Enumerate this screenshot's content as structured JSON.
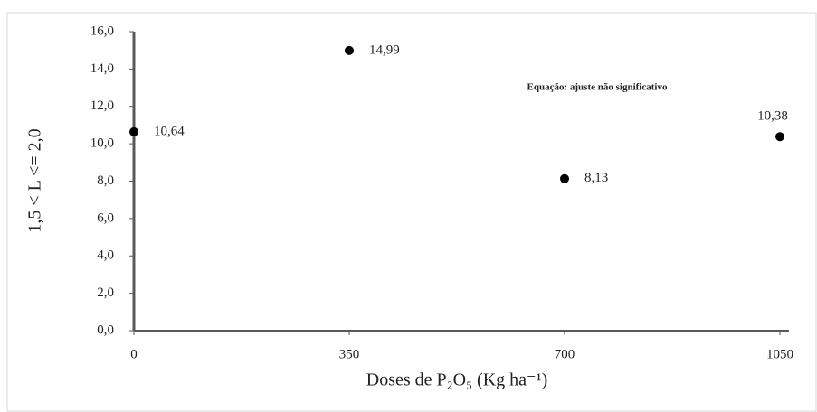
{
  "chart_data": {
    "type": "scatter",
    "x": [
      0,
      350,
      700,
      1050
    ],
    "values": [
      10.64,
      14.99,
      8.13,
      10.38
    ],
    "value_labels": [
      "10,64",
      "14,99",
      "8,13",
      "10,38"
    ],
    "color": "#000000",
    "xlim": [
      0,
      1050
    ],
    "xticks": [
      0,
      350,
      700,
      1050
    ],
    "ylim": [
      0,
      16
    ],
    "yticks": [
      {
        "value": 0,
        "label": "0,0"
      },
      {
        "value": 2,
        "label": "2,0"
      },
      {
        "value": 4,
        "label": "4,0"
      },
      {
        "value": 6,
        "label": "6,0"
      },
      {
        "value": 8,
        "label": "8,0"
      },
      {
        "value": 10,
        "label": "10,0"
      },
      {
        "value": 12,
        "label": "12,0"
      },
      {
        "value": 14,
        "label": "14,0"
      },
      {
        "value": 16,
        "label": "16,0"
      }
    ],
    "xlabel": "Doses de P₂O₅ (Kg ha⁻¹)",
    "ylabel": "1,5 < L <= 2,0",
    "annotation": "Equação: ajuste não significativo"
  }
}
